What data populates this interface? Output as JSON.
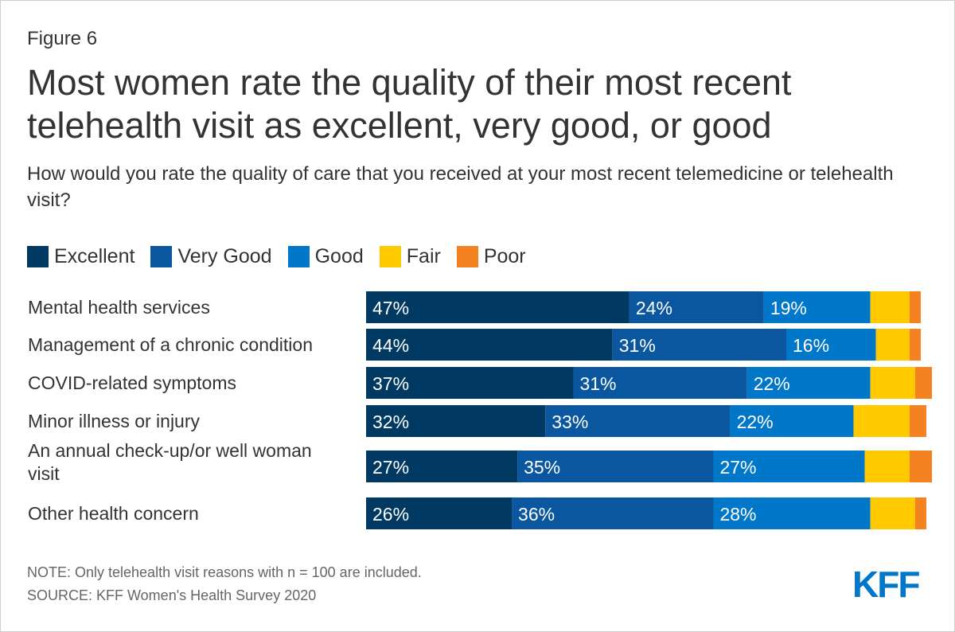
{
  "figure_label": "Figure 6",
  "title": "Most women rate the quality of their most recent telehealth visit as excellent, very good, or good",
  "subtitle": "How would you rate the quality of care that you received at your most recent telemedicine or telehealth visit?",
  "legend": [
    {
      "label": "Excellent",
      "color": "#003a63"
    },
    {
      "label": "Very Good",
      "color": "#0b579f"
    },
    {
      "label": "Good",
      "color": "#0077c8"
    },
    {
      "label": "Fair",
      "color": "#ffc900"
    },
    {
      "label": "Poor",
      "color": "#f58220"
    }
  ],
  "chart_data": {
    "type": "bar",
    "orientation": "horizontal",
    "stacked": true,
    "unit": "%",
    "xlim": [
      0,
      100
    ],
    "categories": [
      "Mental health services",
      "Management of a chronic condition",
      "COVID-related symptoms",
      "Minor illness or injury",
      "An annual check-up/or well woman visit",
      "Other health concern"
    ],
    "series": [
      {
        "name": "Excellent",
        "values": [
          47,
          44,
          37,
          32,
          27,
          26
        ],
        "labeled": true
      },
      {
        "name": "Very Good",
        "values": [
          24,
          31,
          31,
          33,
          35,
          36
        ],
        "labeled": true
      },
      {
        "name": "Good",
        "values": [
          19,
          16,
          22,
          22,
          27,
          28
        ],
        "labeled": true
      },
      {
        "name": "Fair",
        "values": [
          7,
          6,
          8,
          10,
          8,
          8
        ],
        "labeled": false
      },
      {
        "name": "Poor",
        "values": [
          2,
          2,
          3,
          3,
          4,
          2
        ],
        "labeled": false
      }
    ]
  },
  "note": "NOTE: Only telehealth visit reasons with n = 100 are included.",
  "source": "SOURCE: KFF Women's Health Survey 2020",
  "logo_text": "KFF"
}
